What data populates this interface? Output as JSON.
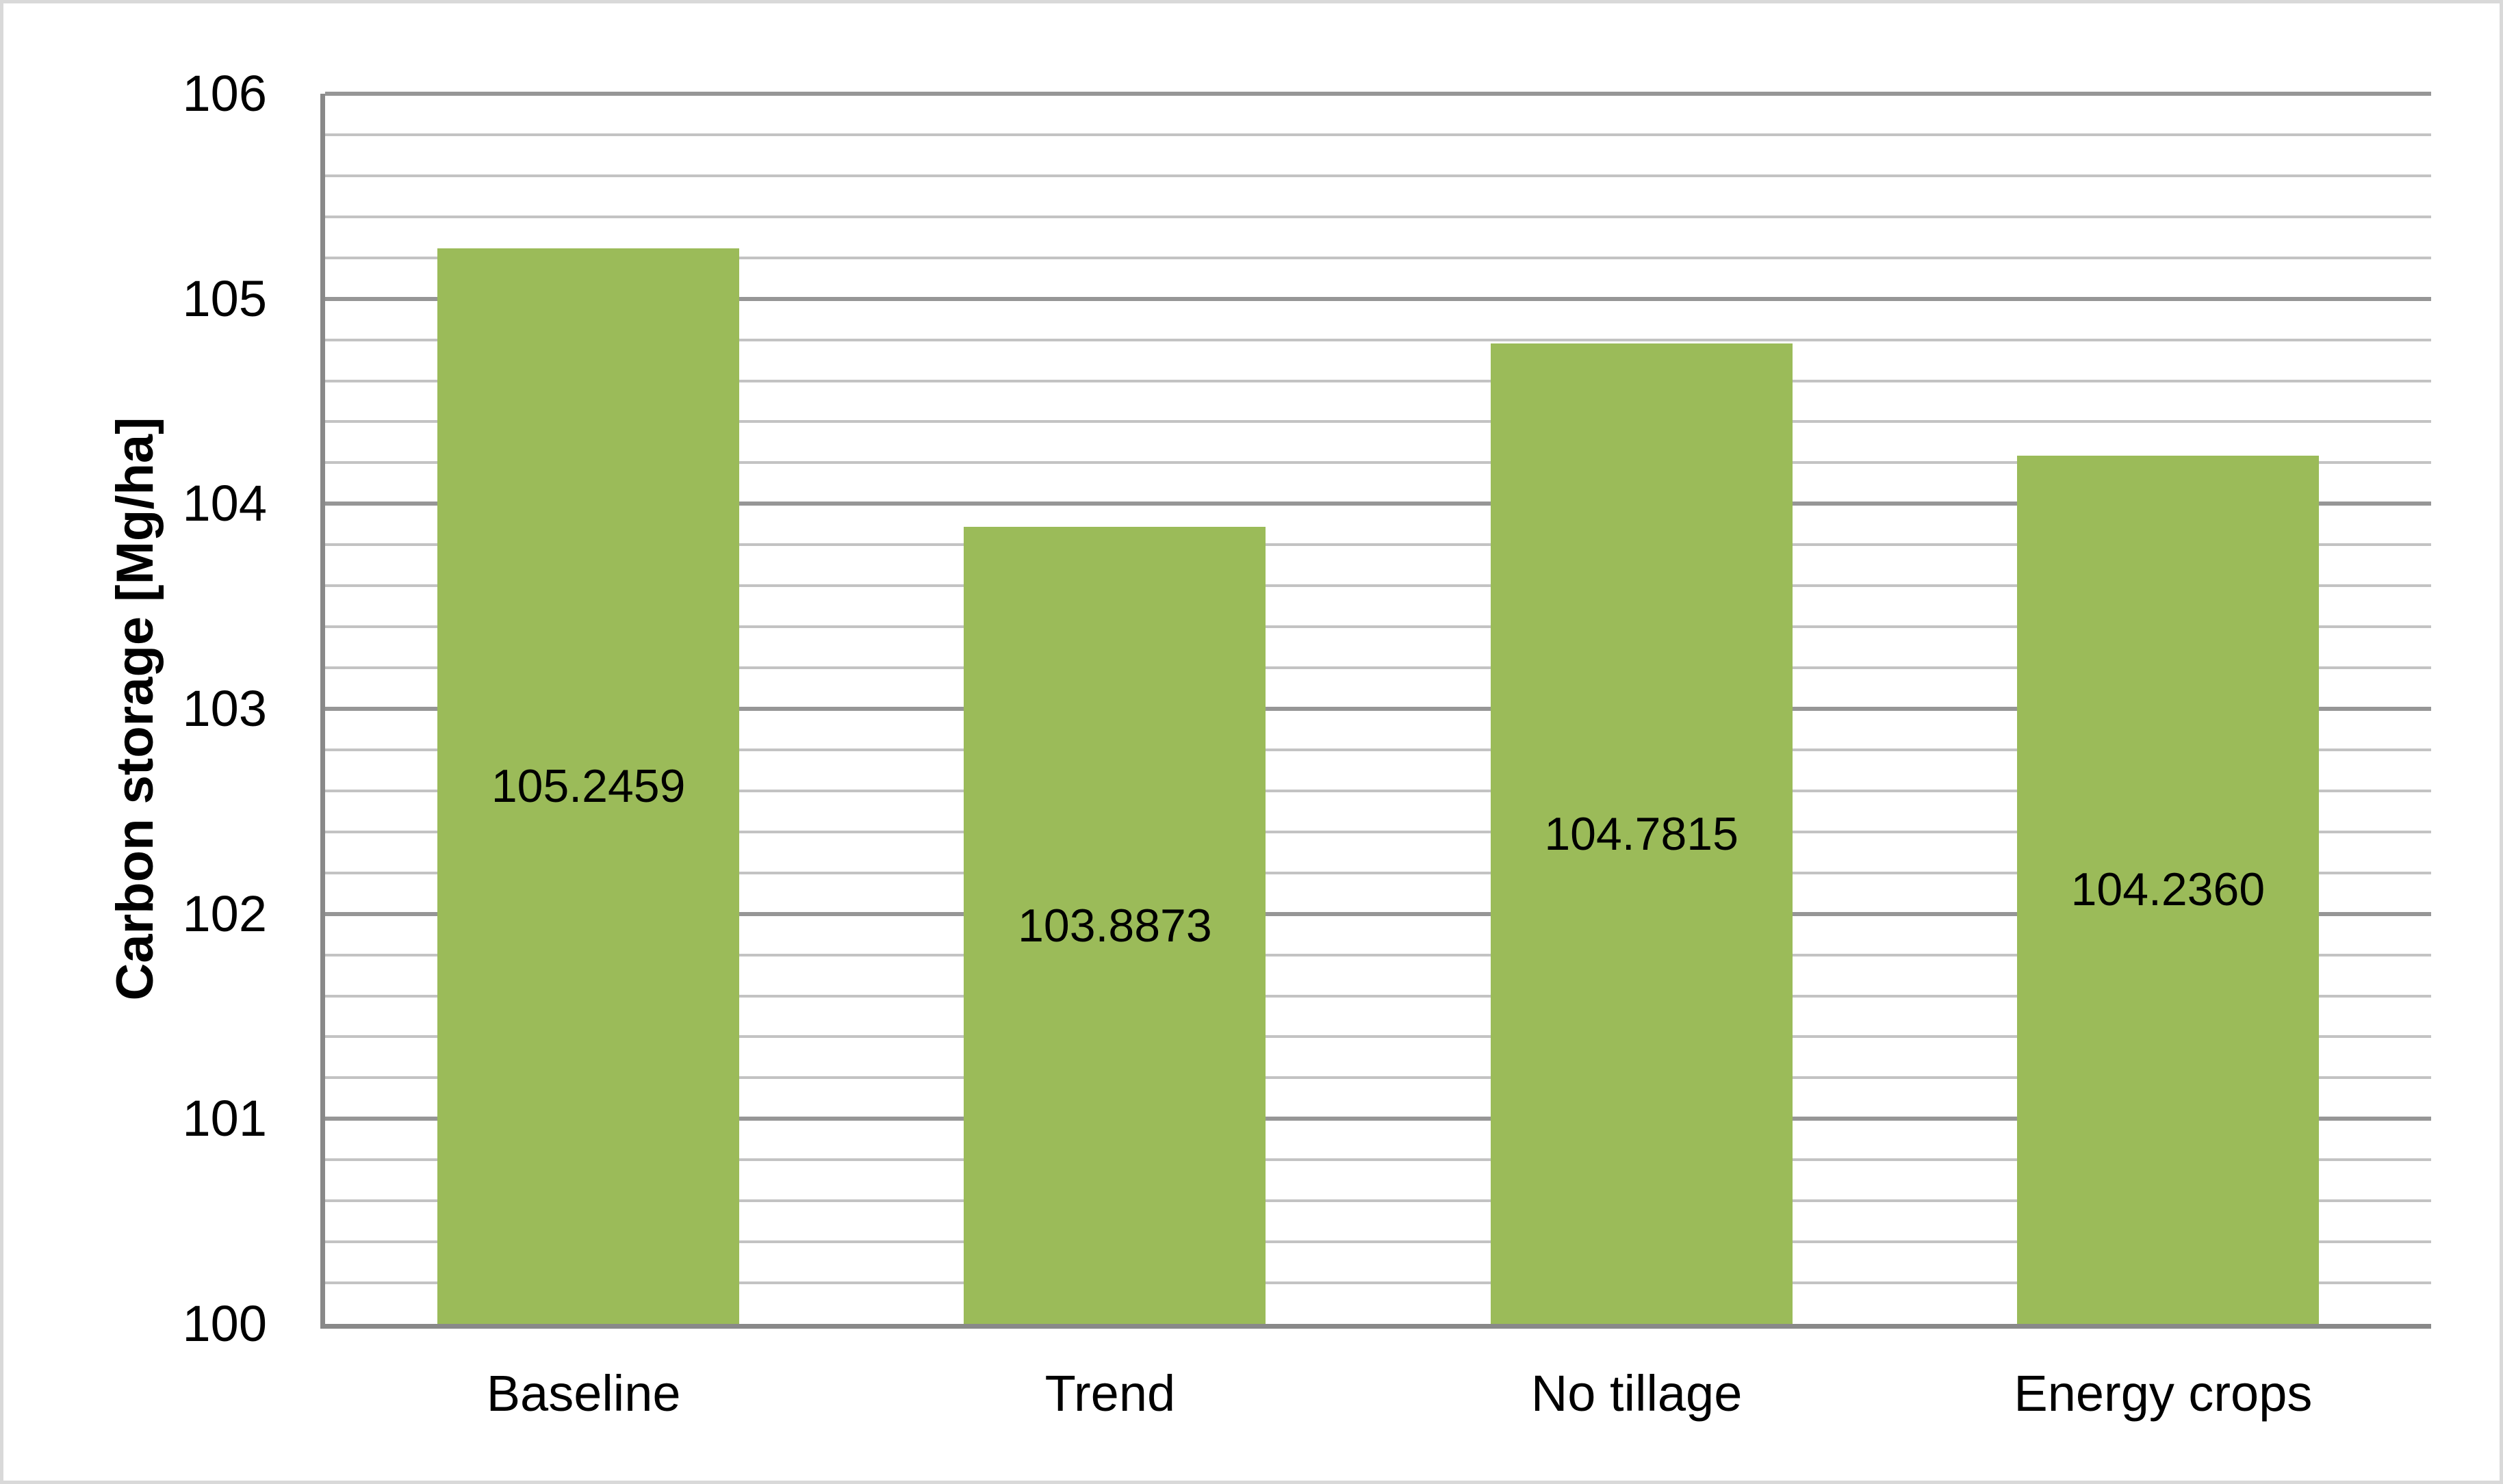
{
  "chart_data": {
    "type": "bar",
    "title": "",
    "categories": [
      "Baseline",
      "Trend",
      "No tillage",
      "Energy crops"
    ],
    "values": [
      105.2459,
      103.8873,
      104.7815,
      104.236
    ],
    "data_labels": [
      "105.2459",
      "103.8873",
      "104.7815",
      "104.2360"
    ],
    "xlabel": "",
    "ylabel": "Carbon storage [Mg/ha]",
    "ylim": [
      100,
      106
    ],
    "y_major_unit": 1,
    "y_minor_unit": 0.2,
    "y_tick_labels": [
      "100",
      "101",
      "102",
      "103",
      "104",
      "105",
      "106"
    ],
    "grid": {
      "horizontal_major": true,
      "horizontal_minor": true,
      "vertical": false
    },
    "legend": "none",
    "data_label_position": "center-inside-bar",
    "colors": {
      "bar_fill": "#9BBB59",
      "major_gridline": "#969696",
      "minor_gridline": "#C3C3C3",
      "axis_line": "#898989",
      "text": "#000000",
      "canvas_border": "#D9D9D9",
      "background": "#FFFFFF"
    }
  }
}
